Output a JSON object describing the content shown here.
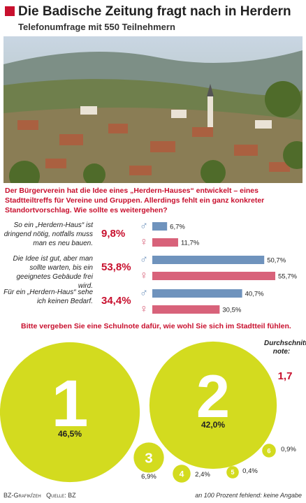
{
  "header": {
    "title": "Die Badische Zeitung fragt nach in Herdern",
    "subtitle": "Telefonumfrage mit 550 Teilnehmern"
  },
  "chart_data": [
    {
      "type": "bar",
      "title": "Der Bürgerverein hat die Idee eines „Herdern-Hauses“ entwickelt – eines Stadtteiltreffs für Vereine und Gruppen. Allerdings fehlt ein ganz konkreter Standortvorschlag. Wie sollte es weitergehen?",
      "categories": [
        "So ein „Herdern-Haus“ ist dringend nötig, notfalls muss man es neu bauen.",
        "Die Idee ist gut, aber man sollte warten, bis ein geeignetes Gebäude frei wird.",
        "Für ein „Herdern-Haus“ sehe ich keinen Bedarf."
      ],
      "totals": [
        9.8,
        53.8,
        34.4
      ],
      "totals_labels": [
        "9,8%",
        "53,8%",
        "34,4%"
      ],
      "series": [
        {
          "name": "♂",
          "color": "#6f93bd",
          "values": [
            6.7,
            50.7,
            40.7
          ],
          "value_labels": [
            "6,7%",
            "50,7%",
            "40,7%"
          ]
        },
        {
          "name": "♀",
          "color": "#d8627a",
          "values": [
            11.7,
            55.7,
            30.5
          ],
          "value_labels": [
            "11,7%",
            "55,7%",
            "30,5%"
          ]
        }
      ]
    },
    {
      "type": "bubble",
      "title": "Bitte vergeben Sie eine Schulnote dafür, wie wohl Sie sich im Stadtteil fühlen.",
      "categories": [
        "1",
        "2",
        "3",
        "4",
        "5",
        "6"
      ],
      "values": [
        46.5,
        42.0,
        6.9,
        2.4,
        0.4,
        0.9
      ],
      "value_labels": [
        "46,5%",
        "42,0%",
        "6,9%",
        "2,4%",
        "0,4%",
        "0,9%"
      ],
      "color": "#d3db1f",
      "average_label": "Durchschnitts-note:",
      "average": "1,7"
    }
  ],
  "footer": {
    "credit": "BZ-Grafik/zeh   Quelle: BZ",
    "note": "an 100 Prozent fehlend: keine Angabe"
  }
}
